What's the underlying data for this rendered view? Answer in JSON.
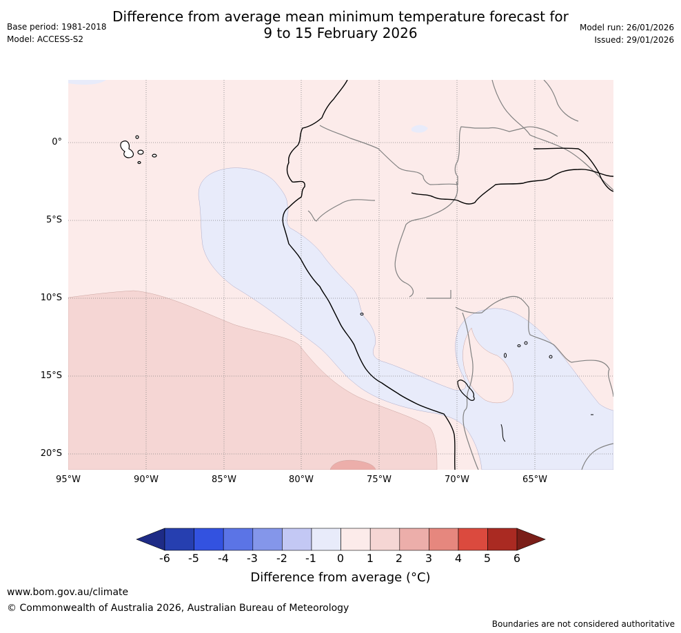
{
  "header": {
    "title_line1": "Difference from average mean minimum temperature forecast for",
    "title_line2": "9 to 15 February 2026",
    "base_period": "Base period: 1981-2018",
    "model": "Model: ACCESS-S2",
    "model_run": "Model run: 26/01/2026",
    "issued": "Issued: 29/01/2026"
  },
  "map": {
    "lat_labels": [
      "0°",
      "5°S",
      "10°S",
      "15°S",
      "20°S"
    ],
    "lon_labels": [
      "95°W",
      "90°W",
      "85°W",
      "80°W",
      "75°W",
      "70°W",
      "65°W"
    ],
    "colors": {
      "anom_0_1": "#fcebea",
      "anom_1_2": "#f5d6d4",
      "anom_2_3": "#ecaeaa",
      "anom_neg1_0": "#e8ebfa",
      "coast": "#000000",
      "border": "#808080",
      "grid": "#808080"
    }
  },
  "colorbar": {
    "ticks": [
      "-6",
      "-5",
      "-4",
      "-3",
      "-2",
      "-1",
      "0",
      "1",
      "2",
      "3",
      "4",
      "5",
      "6"
    ],
    "colors": [
      "#1e2b86",
      "#263fb0",
      "#3352e0",
      "#5b74e6",
      "#8496ea",
      "#c3c8f4",
      "#e8ebfa",
      "#fcebea",
      "#f5d6d4",
      "#ecaeaa",
      "#e6877e",
      "#db4a3e",
      "#aa2a22",
      "#7a1e18"
    ],
    "label": "Difference from average (°C)"
  },
  "footer": {
    "website": "www.bom.gov.au/climate",
    "copyright": "© Commonwealth of Australia 2026, Australian Bureau of Meteorology",
    "disclaimer": "Boundaries are not considered authoritative"
  }
}
